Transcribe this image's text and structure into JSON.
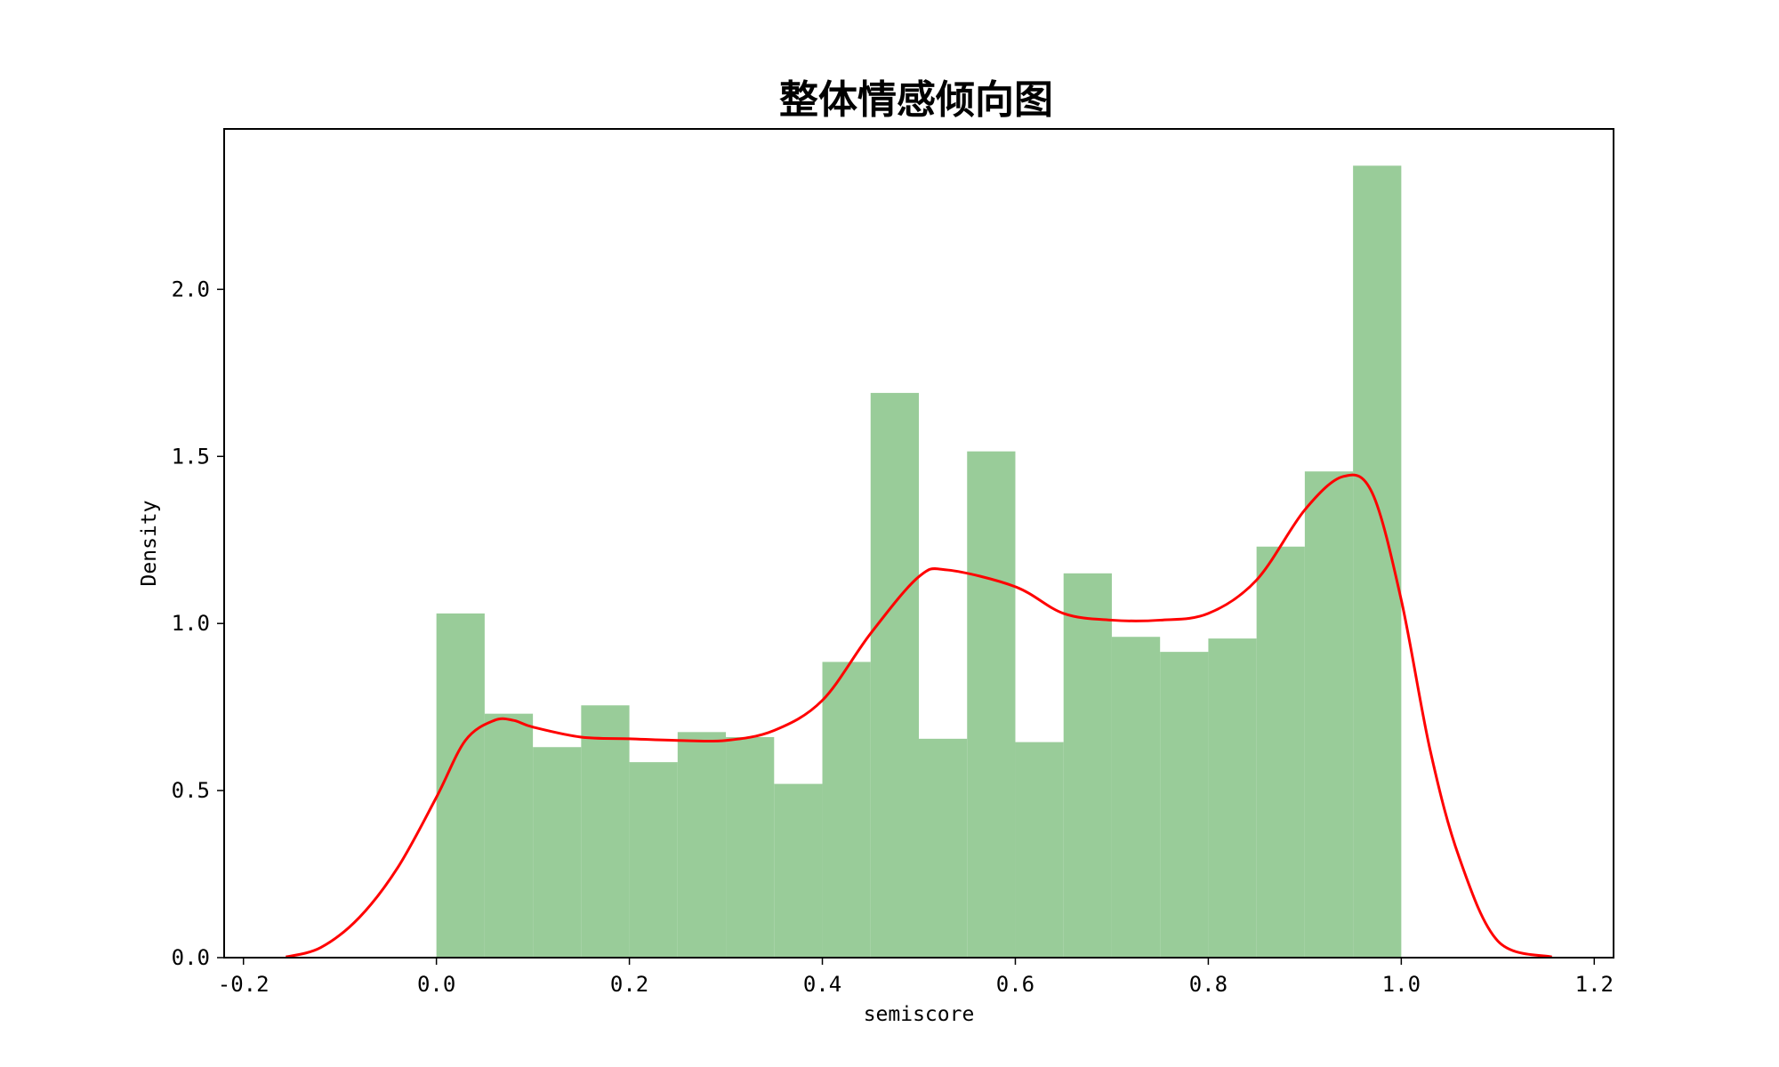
{
  "chart_data": {
    "type": "bar",
    "title": "整体情感倾向图",
    "xlabel": "semiscore",
    "ylabel": "Density",
    "xlim": [
      -0.22,
      1.22
    ],
    "ylim": [
      0,
      2.48
    ],
    "x_ticks": [
      -0.2,
      0.0,
      0.2,
      0.4,
      0.6,
      0.8,
      1.0,
      1.2
    ],
    "x_tick_labels": [
      "-0.2",
      "0.0",
      "0.2",
      "0.4",
      "0.6",
      "0.8",
      "1.0",
      "1.2"
    ],
    "y_ticks": [
      0.0,
      0.5,
      1.0,
      1.5,
      2.0
    ],
    "y_tick_labels": [
      "0.0",
      "0.5",
      "1.0",
      "1.5",
      "2.0"
    ],
    "grid": false,
    "bins": {
      "start": 0.0,
      "width": 0.05,
      "values": [
        1.03,
        0.73,
        0.63,
        0.755,
        0.585,
        0.675,
        0.66,
        0.52,
        0.885,
        1.69,
        0.655,
        1.515,
        0.645,
        1.15,
        0.96,
        0.915,
        0.955,
        1.23,
        1.455,
        2.37
      ]
    },
    "kde": {
      "x": [
        -0.156,
        -0.12,
        -0.08,
        -0.04,
        0.0,
        0.03,
        0.06,
        0.08,
        0.1,
        0.15,
        0.2,
        0.25,
        0.3,
        0.35,
        0.4,
        0.45,
        0.5,
        0.53,
        0.6,
        0.65,
        0.7,
        0.75,
        0.8,
        0.85,
        0.9,
        0.94,
        0.97,
        1.0,
        1.03,
        1.06,
        1.1,
        1.156
      ],
      "y": [
        0.002,
        0.03,
        0.12,
        0.27,
        0.48,
        0.65,
        0.71,
        0.71,
        0.69,
        0.66,
        0.655,
        0.65,
        0.65,
        0.68,
        0.77,
        0.97,
        1.14,
        1.16,
        1.11,
        1.03,
        1.01,
        1.01,
        1.03,
        1.13,
        1.34,
        1.44,
        1.39,
        1.07,
        0.62,
        0.3,
        0.05,
        0.002
      ]
    },
    "colors": {
      "bars": "#99cc99",
      "kde": "#ff0000",
      "axes": "#000000"
    }
  }
}
